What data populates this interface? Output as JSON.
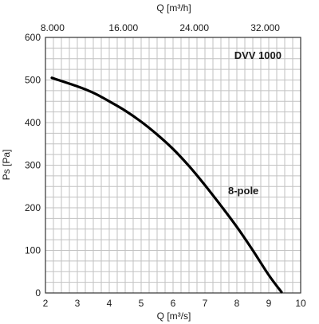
{
  "chart_data": {
    "type": "line",
    "title": "DVV 1000",
    "xlabel": "Q [m³/s]",
    "ylabel": "Ps [Pa]",
    "x2label": "Q [m³/h]",
    "xlim": [
      2,
      10
    ],
    "ylim": [
      0,
      600
    ],
    "xticks": [
      "2",
      "3",
      "4",
      "5",
      "6",
      "7",
      "8",
      "9",
      "10"
    ],
    "yticks": [
      "0",
      "100",
      "200",
      "300",
      "400",
      "500",
      "600"
    ],
    "x2ticks": [
      "8.000",
      "16.000",
      "24.000",
      "32.000"
    ],
    "grid": true,
    "series": [
      {
        "name": "8-pole",
        "x": [
          2.2,
          3.0,
          3.5,
          4.0,
          4.5,
          5.0,
          5.5,
          6.0,
          6.5,
          7.0,
          7.5,
          8.0,
          8.5,
          9.0,
          9.4
        ],
        "y": [
          505,
          485,
          470,
          450,
          428,
          402,
          372,
          338,
          298,
          253,
          205,
          155,
          100,
          42,
          2
        ]
      }
    ]
  }
}
